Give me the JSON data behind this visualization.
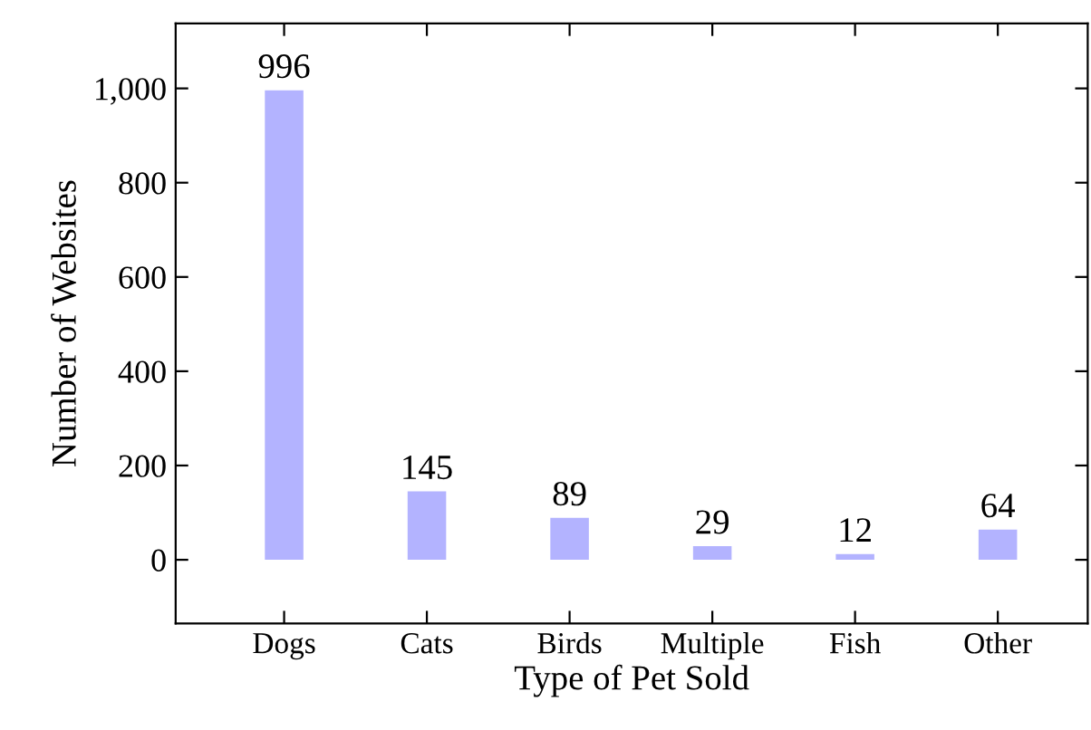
{
  "chart_data": {
    "type": "bar",
    "xlabel": "Type of Pet Sold",
    "ylabel": "Number of Websites",
    "categories": [
      "Dogs",
      "Cats",
      "Birds",
      "Multiple",
      "Fish",
      "Other"
    ],
    "values": [
      996,
      145,
      89,
      29,
      12,
      64
    ],
    "color": "#b3b3ff",
    "ylim": [
      -135,
      1138
    ],
    "yticks": [
      0,
      200,
      400,
      600,
      800,
      {
        "value": 1000,
        "label": "1,000"
      }
    ],
    "data_labels": true,
    "grid": false,
    "legend": false
  }
}
